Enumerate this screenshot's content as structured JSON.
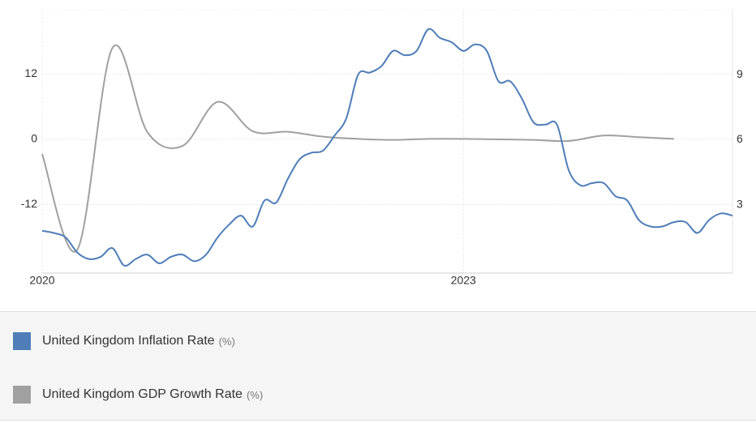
{
  "chart_data": {
    "type": "line",
    "x": [
      "2020-01",
      "2020-02",
      "2020-03",
      "2020-04",
      "2020-05",
      "2020-06",
      "2020-07",
      "2020-08",
      "2020-09",
      "2020-10",
      "2020-11",
      "2020-12",
      "2021-01",
      "2021-02",
      "2021-03",
      "2021-04",
      "2021-05",
      "2021-06",
      "2021-07",
      "2021-08",
      "2021-09",
      "2021-10",
      "2021-11",
      "2021-12",
      "2022-01",
      "2022-02",
      "2022-03",
      "2022-04",
      "2022-05",
      "2022-06",
      "2022-07",
      "2022-08",
      "2022-09",
      "2022-10",
      "2022-11",
      "2022-12",
      "2023-01",
      "2023-02",
      "2023-03",
      "2023-04",
      "2023-05",
      "2023-06",
      "2023-07",
      "2023-08",
      "2023-09",
      "2023-10",
      "2023-11",
      "2023-12",
      "2024-01",
      "2024-02",
      "2024-03",
      "2024-04",
      "2024-05",
      "2024-06",
      "2024-07",
      "2024-08",
      "2024-09",
      "2024-10",
      "2024-11",
      "2024-12"
    ],
    "series": [
      {
        "name": "United Kingdom Inflation Rate",
        "unit": "(%)",
        "color": "#4f7db8",
        "axis": "y2",
        "values": [
          1.8,
          1.7,
          1.5,
          0.8,
          0.5,
          0.6,
          1.0,
          0.2,
          0.5,
          0.7,
          0.3,
          0.6,
          0.7,
          0.4,
          0.7,
          1.5,
          2.1,
          2.5,
          2.0,
          3.2,
          3.1,
          4.2,
          5.1,
          5.4,
          5.5,
          6.2,
          7.0,
          9.0,
          9.1,
          9.4,
          10.1,
          9.9,
          10.1,
          11.1,
          10.7,
          10.5,
          10.1,
          10.4,
          10.1,
          8.7,
          8.7,
          7.9,
          6.8,
          6.7,
          6.7,
          4.6,
          3.9,
          4.0,
          4.0,
          3.4,
          3.2,
          2.3,
          2.0,
          2.0,
          2.2,
          2.2,
          1.7,
          2.3,
          2.6,
          2.5
        ]
      },
      {
        "name": "United Kingdom GDP Growth Rate",
        "unit": "(%)",
        "color": "#a0a0a0",
        "axis": "y",
        "values": [
          -2.7,
          null,
          null,
          -20.3,
          null,
          null,
          16.8,
          null,
          null,
          1.3,
          null,
          null,
          -1.2,
          null,
          null,
          6.9,
          null,
          null,
          1.5,
          null,
          null,
          1.4,
          null,
          null,
          0.5,
          null,
          null,
          0.1,
          null,
          null,
          -0.1,
          null,
          null,
          0.1,
          null,
          null,
          0.1,
          null,
          null,
          0.0,
          null,
          null,
          -0.1,
          null,
          null,
          -0.3,
          null,
          null,
          0.7,
          null,
          null,
          0.4,
          null,
          null,
          0.1,
          null,
          null,
          null,
          null,
          null
        ]
      }
    ],
    "xlim": [
      "2020-01",
      "2024-12"
    ],
    "xticks": [
      {
        "value": "2020-01",
        "label": "2020"
      },
      {
        "value": "2023-01",
        "label": "2023"
      }
    ],
    "ylim": [
      -24.6,
      23.85
    ],
    "yticks": [
      -12,
      0,
      12
    ],
    "y2lim": [
      -0.15,
      12
    ],
    "y2ticks": [
      3,
      6,
      9
    ],
    "grid": true,
    "legend": "bottom"
  }
}
